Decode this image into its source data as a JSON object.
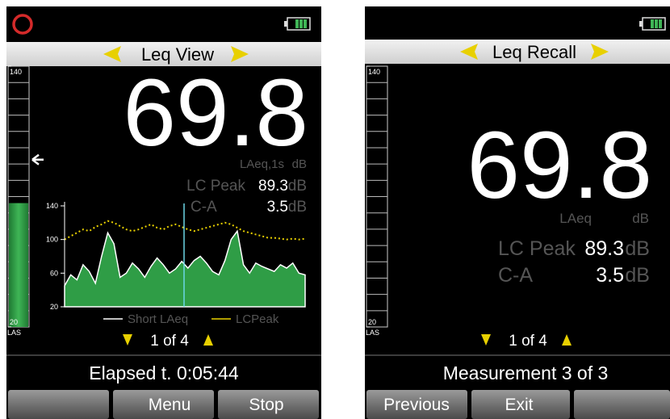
{
  "left_screen": {
    "header": "Leq View",
    "reading": "69.8",
    "reading_label": "LAeq,1s",
    "reading_unit": "dB",
    "rows": [
      {
        "label": "LC Peak",
        "value": "89.3",
        "unit": "dB"
      },
      {
        "label": "C-A",
        "value": "3.5",
        "unit": "dB"
      }
    ],
    "level_bar": {
      "ylim": [
        20,
        140
      ],
      "yticks": [
        20,
        140
      ],
      "weighting": "LAS",
      "level": 77,
      "max_marker": 97
    },
    "history": {
      "type": "area",
      "ylim": [
        20,
        140
      ],
      "yticks": [
        20,
        60,
        100,
        140
      ],
      "series": [
        {
          "name": "Short LAeq",
          "color": "#2f9d46",
          "values": [
            45,
            58,
            52,
            70,
            62,
            48,
            80,
            108,
            95,
            55,
            60,
            72,
            65,
            55,
            68,
            78,
            70,
            60,
            65,
            74,
            66,
            75,
            80,
            72,
            62,
            58,
            75,
            100,
            110,
            70,
            60,
            72,
            68,
            65,
            62,
            70,
            66,
            72,
            60,
            58
          ]
        },
        {
          "name": "LCPeak",
          "color": "#e8d000",
          "values": [
            100,
            104,
            108,
            112,
            110,
            115,
            118,
            122,
            120,
            116,
            112,
            110,
            112,
            115,
            118,
            114,
            112,
            116,
            118,
            115,
            112,
            110,
            112,
            114,
            116,
            118,
            120,
            118,
            114,
            110,
            108,
            106,
            104,
            102,
            102,
            101,
            100,
            101,
            100,
            101
          ]
        }
      ]
    },
    "page": "1 of 4",
    "status": "Elapsed t. 0:05:44",
    "buttons": [
      "Menu",
      "Stop"
    ]
  },
  "right_screen": {
    "header": "Leq Recall",
    "reading": "69.8",
    "reading_label": "LAeq",
    "reading_unit": "dB",
    "rows": [
      {
        "label": "LC Peak",
        "value": "89.3",
        "unit": "dB"
      },
      {
        "label": "C-A",
        "value": "3.5",
        "unit": "dB"
      }
    ],
    "level_bar": {
      "ylim": [
        20,
        140
      ],
      "yticks": [
        20,
        140
      ],
      "weighting": "LAS"
    },
    "page": "1 of 4",
    "status": "Measurement 3 of 3",
    "buttons": [
      "Previous",
      "Exit"
    ]
  }
}
